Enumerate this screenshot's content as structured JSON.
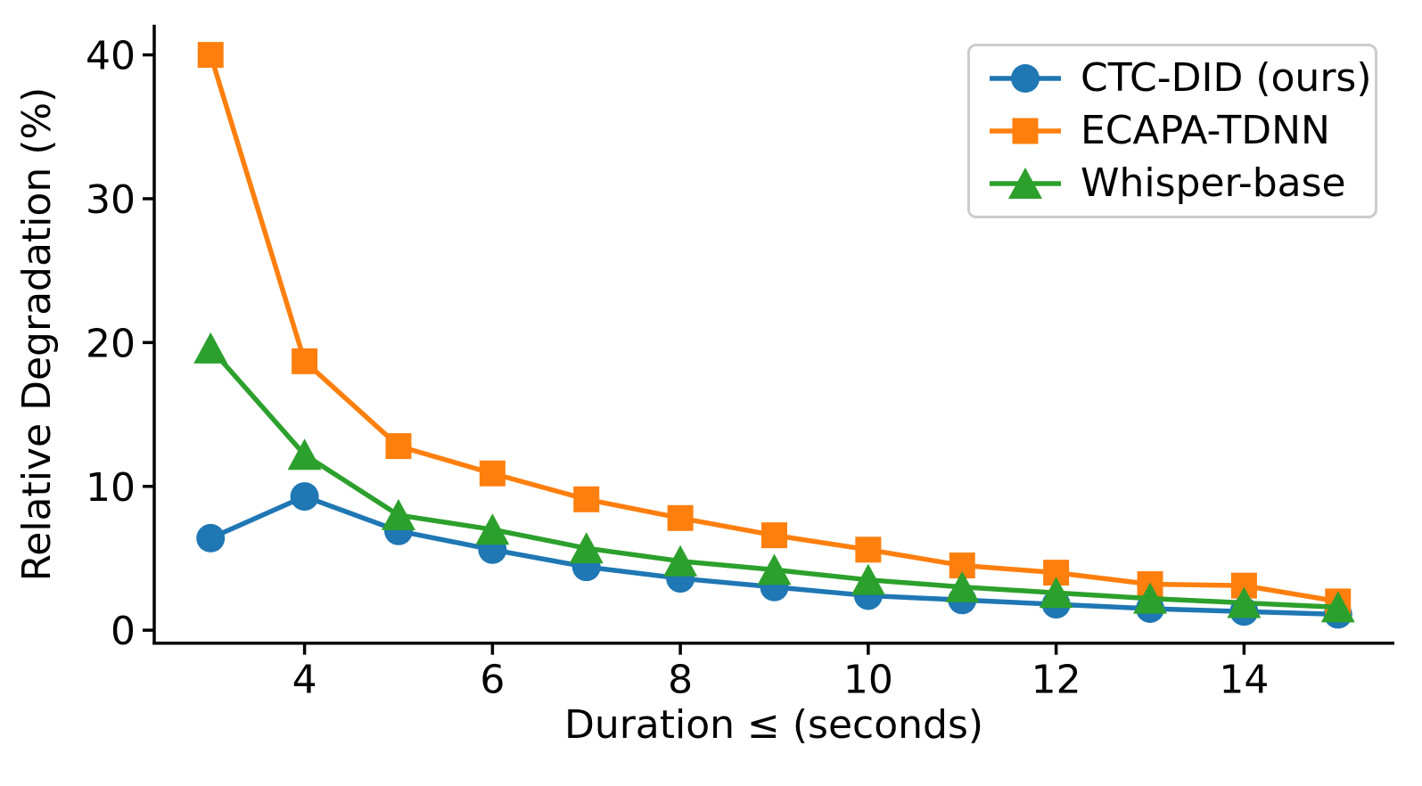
{
  "figure": {
    "background": "#ffffff",
    "text_color": "#000000",
    "spine_color": "#000000",
    "legend_border_color": "#cccccc"
  },
  "chart_data": {
    "type": "line",
    "title": "",
    "xlabel": "Duration ≤ (seconds)",
    "ylabel": "Relative Degradation (%)",
    "x": [
      3,
      4,
      5,
      6,
      7,
      8,
      9,
      10,
      11,
      12,
      13,
      14,
      15
    ],
    "series": [
      {
        "name": "CTC-DID (ours)",
        "marker": "circle-marker",
        "color": "#1f77b4",
        "values": [
          6.4,
          9.3,
          6.9,
          5.6,
          4.4,
          3.6,
          3.0,
          2.4,
          2.1,
          1.8,
          1.5,
          1.3,
          1.1
        ]
      },
      {
        "name": "ECAPA-TDNN",
        "marker": "square-marker",
        "color": "#ff7f0e",
        "values": [
          40.0,
          18.7,
          12.8,
          10.9,
          9.1,
          7.8,
          6.6,
          5.6,
          4.5,
          4.0,
          3.2,
          3.1,
          2.0
        ]
      },
      {
        "name": "Whisper-base",
        "marker": "triangle-marker",
        "color": "#2ca02c",
        "values": [
          19.6,
          12.2,
          8.0,
          7.0,
          5.7,
          4.8,
          4.2,
          3.5,
          3.0,
          2.6,
          2.2,
          1.9,
          1.6
        ]
      }
    ],
    "xticks": [
      4,
      6,
      8,
      10,
      12,
      14
    ],
    "yticks": [
      0,
      10,
      20,
      30,
      40
    ],
    "xlim": [
      2.4,
      15.6
    ],
    "ylim": [
      -0.9,
      42.1
    ],
    "grid": false,
    "legend_position": "upper right"
  }
}
